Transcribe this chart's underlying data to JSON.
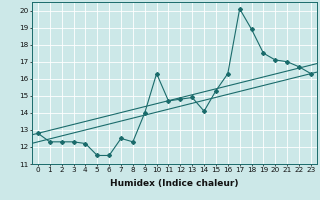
{
  "title": "",
  "xlabel": "Humidex (Indice chaleur)",
  "bg_color": "#cce8e8",
  "line_color": "#1a6b6b",
  "x_data": [
    0,
    1,
    2,
    3,
    4,
    5,
    6,
    7,
    8,
    9,
    10,
    11,
    12,
    13,
    14,
    15,
    16,
    17,
    18,
    19,
    20,
    21,
    22,
    23
  ],
  "y_data": [
    12.8,
    12.3,
    12.3,
    12.3,
    12.2,
    11.5,
    11.5,
    12.5,
    12.3,
    14.0,
    16.3,
    14.7,
    14.8,
    14.9,
    14.1,
    15.3,
    16.3,
    20.1,
    18.9,
    17.5,
    17.1,
    17.0,
    16.7,
    16.3
  ],
  "ylim": [
    11,
    20.5
  ],
  "xlim": [
    -0.5,
    23.5
  ],
  "yticks": [
    11,
    12,
    13,
    14,
    15,
    16,
    17,
    18,
    19,
    20
  ],
  "xticks": [
    0,
    1,
    2,
    3,
    4,
    5,
    6,
    7,
    8,
    9,
    10,
    11,
    12,
    13,
    14,
    15,
    16,
    17,
    18,
    19,
    20,
    21,
    22,
    23
  ],
  "grid_color": "#ffffff",
  "tick_fontsize": 5.2,
  "xlabel_fontsize": 6.5
}
